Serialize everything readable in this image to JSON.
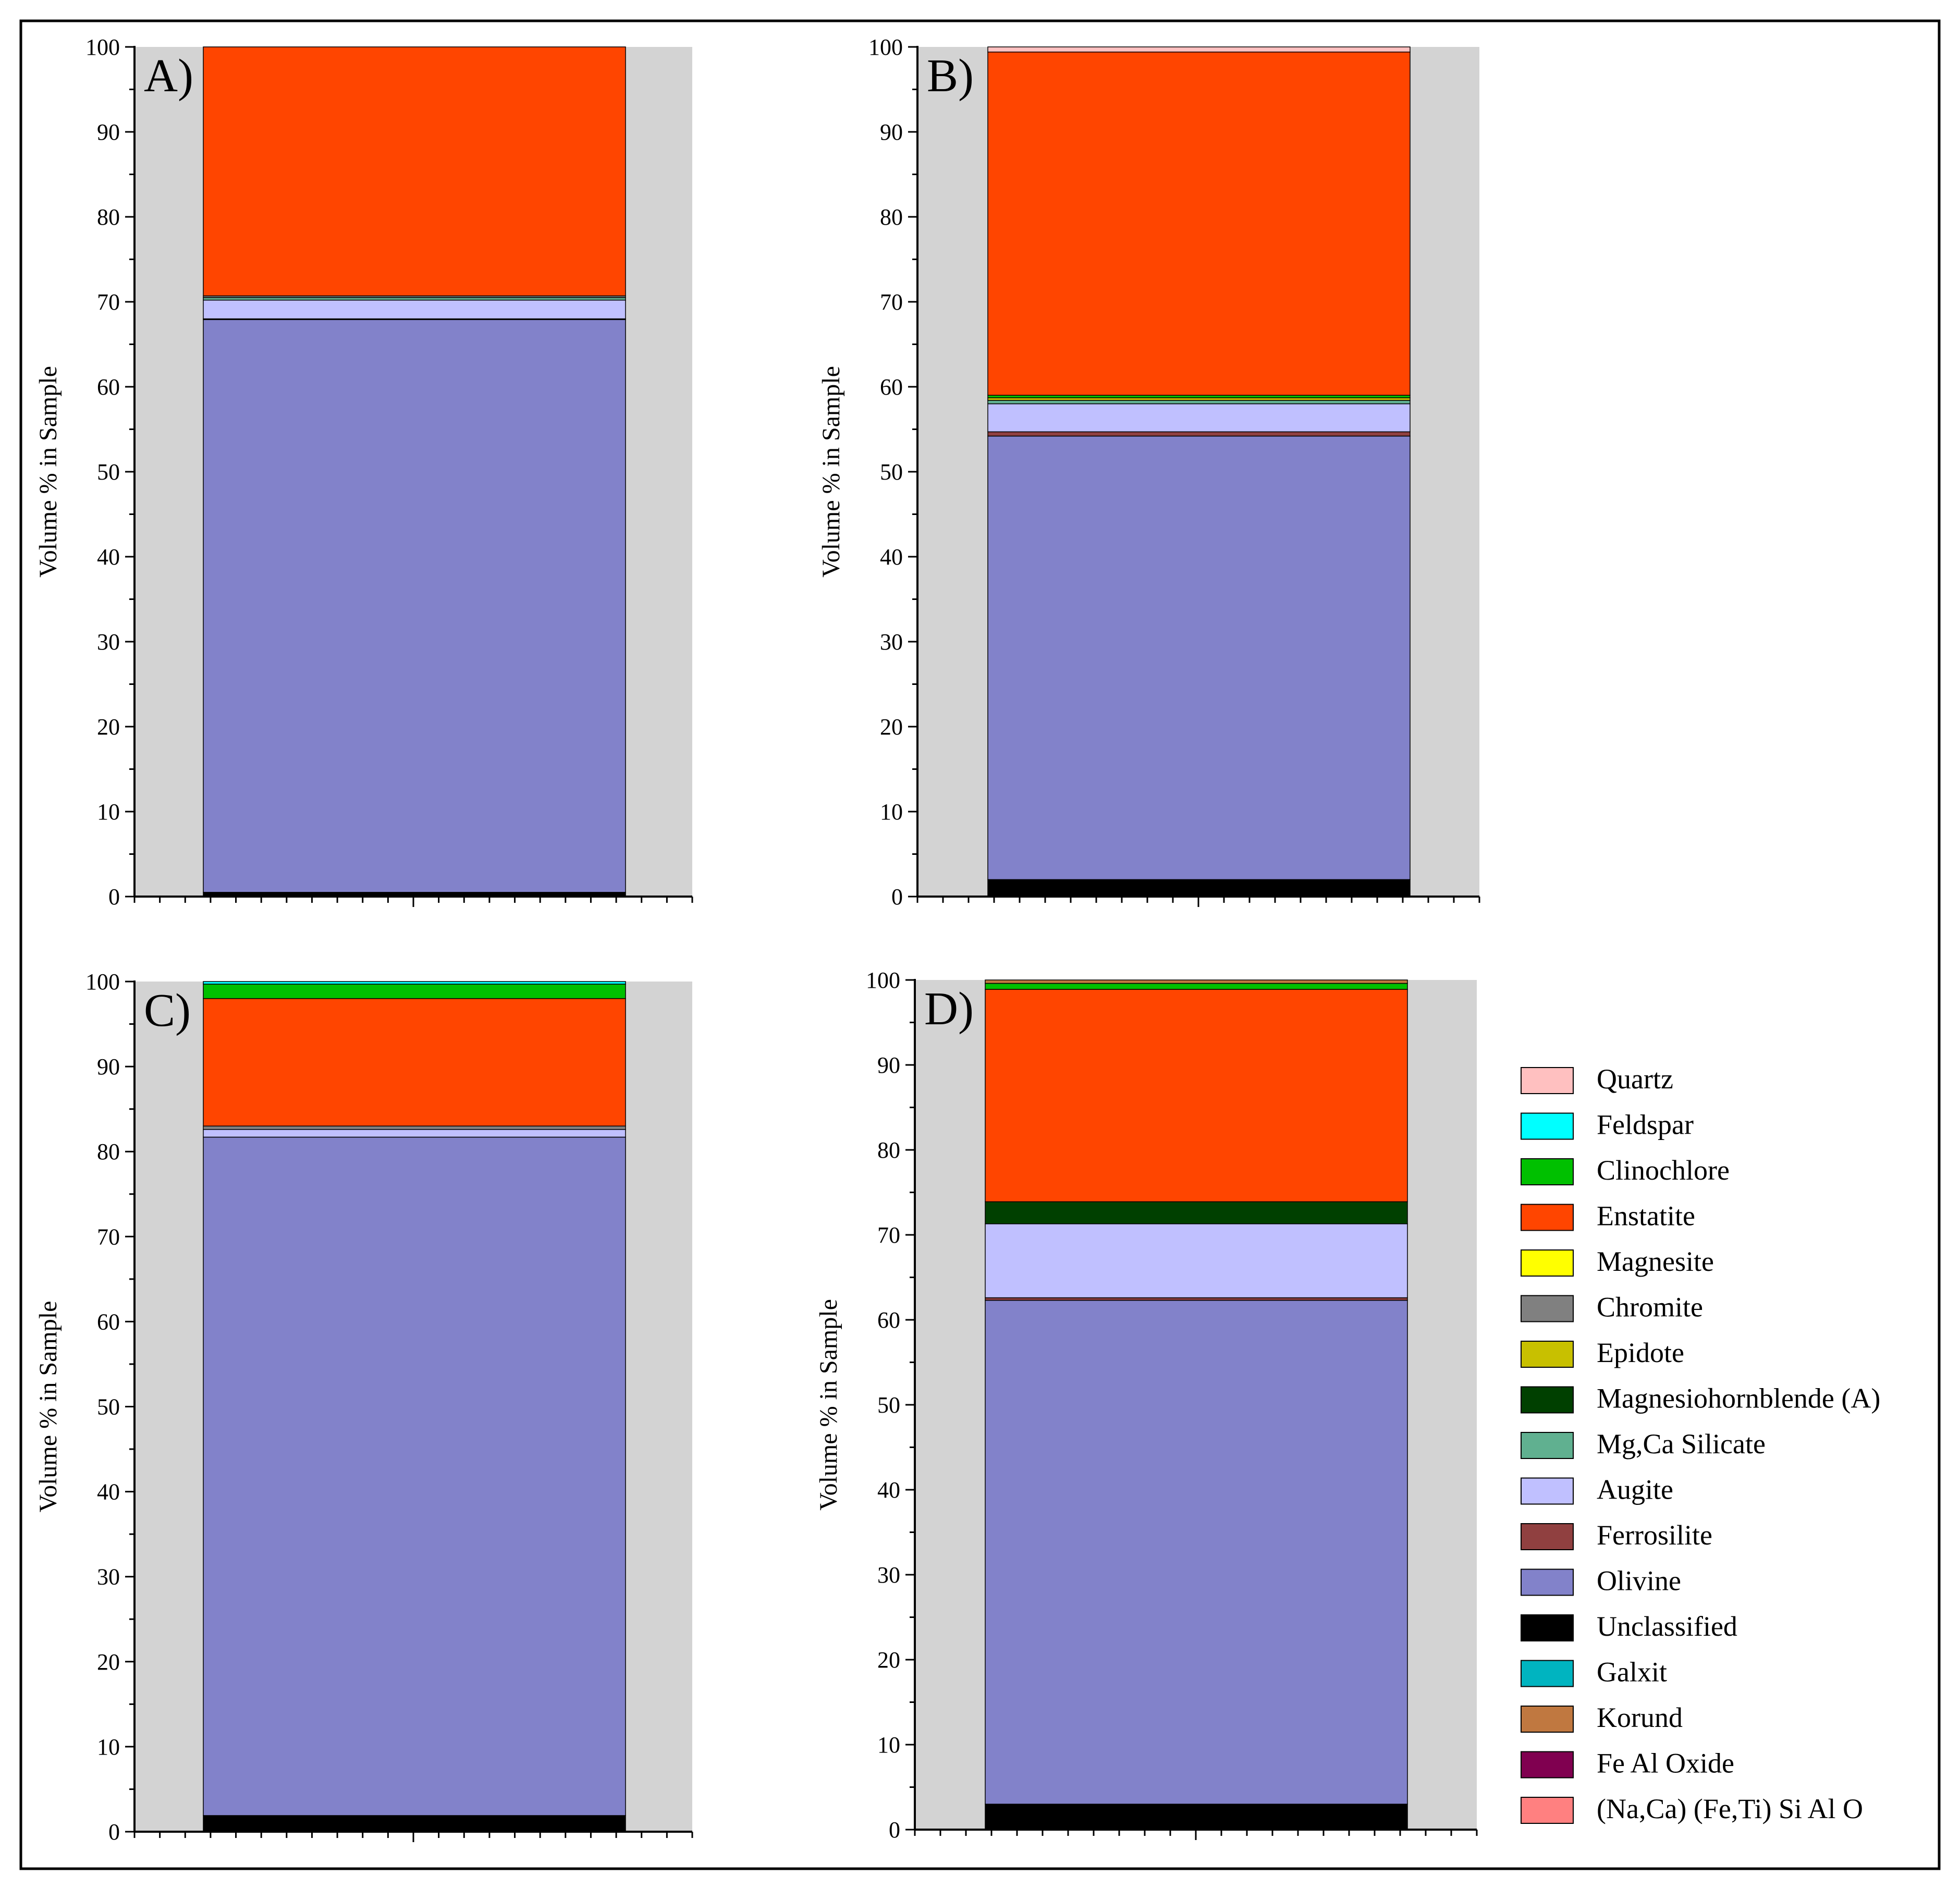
{
  "chart_data": [
    {
      "type": "bar",
      "stacked": true,
      "panel_label": "A)",
      "ylabel": "Volume % in Sample",
      "ylim": [
        0,
        100
      ],
      "yticks": [
        "0",
        "10",
        "20",
        "30",
        "40",
        "50",
        "60",
        "70",
        "80",
        "90",
        "100"
      ],
      "series": [
        {
          "name": "Unclassified",
          "value": 0.5
        },
        {
          "name": "Olivine",
          "value": 67.4
        },
        {
          "name": "Ferrosilite",
          "value": 0.1
        },
        {
          "name": "Augite",
          "value": 2.2
        },
        {
          "name": "Mg,Ca Silicate",
          "value": 0.3
        },
        {
          "name": "Chromite",
          "value": 0.2
        },
        {
          "name": "Enstatite",
          "value": 29.3
        }
      ]
    },
    {
      "type": "bar",
      "stacked": true,
      "panel_label": "B)",
      "ylabel": "Volume % in Sample",
      "ylim": [
        0,
        100
      ],
      "yticks": [
        "0",
        "10",
        "20",
        "30",
        "40",
        "50",
        "60",
        "70",
        "80",
        "90",
        "100"
      ],
      "series": [
        {
          "name": "Unclassified",
          "value": 2.0
        },
        {
          "name": "Olivine",
          "value": 52.2
        },
        {
          "name": "Ferrosilite",
          "value": 0.5
        },
        {
          "name": "Augite",
          "value": 3.3
        },
        {
          "name": "Mg,Ca Silicate",
          "value": 0.4
        },
        {
          "name": "Epidote",
          "value": 0.3
        },
        {
          "name": "Clinochlore",
          "value": 0.3
        },
        {
          "name": "Enstatite",
          "value": 40.4
        },
        {
          "name": "Quartz",
          "value": 0.6
        }
      ]
    },
    {
      "type": "bar",
      "stacked": true,
      "panel_label": "C)",
      "ylabel": "Volume % in Sample",
      "ylim": [
        0,
        100
      ],
      "yticks": [
        "0",
        "10",
        "20",
        "30",
        "40",
        "50",
        "60",
        "70",
        "80",
        "90",
        "100"
      ],
      "series": [
        {
          "name": "Unclassified",
          "value": 1.9
        },
        {
          "name": "Olivine",
          "value": 79.8
        },
        {
          "name": "Augite",
          "value": 0.9
        },
        {
          "name": "Chromite",
          "value": 0.4
        },
        {
          "name": "Enstatite",
          "value": 15.0
        },
        {
          "name": "Clinochlore",
          "value": 1.7
        },
        {
          "name": "Feldspar",
          "value": 0.3
        }
      ]
    },
    {
      "type": "bar",
      "stacked": true,
      "panel_label": "D)",
      "ylabel": "Volume % in Sample",
      "ylim": [
        0,
        100
      ],
      "yticks": [
        "0",
        "10",
        "20",
        "30",
        "40",
        "50",
        "60",
        "70",
        "80",
        "90",
        "100"
      ],
      "series": [
        {
          "name": "Unclassified",
          "value": 3.0
        },
        {
          "name": "Olivine",
          "value": 59.3
        },
        {
          "name": "Ferrosilite",
          "value": 0.3
        },
        {
          "name": "Augite",
          "value": 8.7
        },
        {
          "name": "Magnesiohornblende (A)",
          "value": 2.6
        },
        {
          "name": "Enstatite",
          "value": 25.0
        },
        {
          "name": "Clinochlore",
          "value": 0.7
        },
        {
          "name": "Korund",
          "value": 0.4
        }
      ]
    }
  ],
  "legend": [
    {
      "name": "Quartz",
      "color": "#FFC0C0"
    },
    {
      "name": "Feldspar",
      "color": "#00FFFF"
    },
    {
      "name": "Clinochlore",
      "color": "#00C000"
    },
    {
      "name": "Enstatite",
      "color": "#FF4500"
    },
    {
      "name": "Magnesite",
      "color": "#FFFF00"
    },
    {
      "name": "Chromite",
      "color": "#808080"
    },
    {
      "name": "Epidote",
      "color": "#C8C000"
    },
    {
      "name": "Magnesiohornblende (A)",
      "color": "#004000"
    },
    {
      "name": "Mg,Ca Silicate",
      "color": "#60B090"
    },
    {
      "name": "Augite",
      "color": "#C0C0FF"
    },
    {
      "name": "Ferrosilite",
      "color": "#904040"
    },
    {
      "name": "Olivine",
      "color": "#8282CA"
    },
    {
      "name": "Unclassified",
      "color": "#000000"
    },
    {
      "name": "Galxit",
      "color": "#00B4C0"
    },
    {
      "name": "Korund",
      "color": "#C07840"
    },
    {
      "name": "Fe Al Oxide",
      "color": "#800050"
    },
    {
      "name": "(Na,Ca) (Fe,Ti) Si Al O",
      "color": "#FF8080"
    }
  ],
  "style": {
    "background_band_color": "#D3D3D3",
    "frame_color": "#000000"
  }
}
